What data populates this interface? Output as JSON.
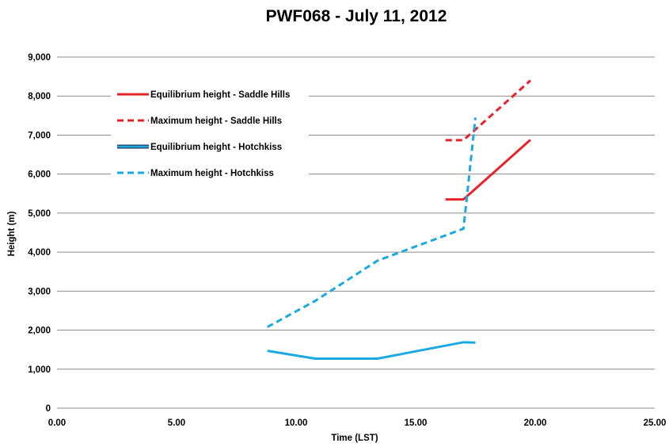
{
  "chart_data": {
    "type": "line",
    "title": "PWF068 - July 11, 2012",
    "xlabel": "Time (LST)",
    "ylabel": "Height (m)",
    "xlim": [
      0,
      25
    ],
    "ylim": [
      0,
      9000
    ],
    "x_ticks": [
      "0.00",
      "5.00",
      "10.00",
      "15.00",
      "20.00",
      "25.00"
    ],
    "y_ticks": [
      "0",
      "1,000",
      "2,000",
      "3,000",
      "4,000",
      "5,000",
      "6,000",
      "7,000",
      "8,000",
      "9,000"
    ],
    "grid": "horizontal",
    "legend_position": "top-left",
    "series": [
      {
        "name": "Equilibrium height - Saddle Hills",
        "color": "#e8222a",
        "style": "solid",
        "x": [
          16.25,
          17.0,
          19.8
        ],
        "y": [
          5350,
          5350,
          6880
        ]
      },
      {
        "name": "Maximum height - Saddle Hills",
        "color": "#e8222a",
        "style": "dashed",
        "x": [
          16.25,
          17.0,
          19.8
        ],
        "y": [
          6870,
          6870,
          8400
        ]
      },
      {
        "name": "Equilibrium height - Hotchkiss",
        "color": "#1ba9e1",
        "style": "solid",
        "x": [
          8.8,
          10.8,
          13.4,
          17.0,
          17.5
        ],
        "y": [
          1470,
          1270,
          1270,
          1690,
          1680
        ]
      },
      {
        "name": "Maximum height - Hotchkiss",
        "color": "#1ba9e1",
        "style": "dashed",
        "x": [
          8.8,
          10.8,
          13.4,
          17.0,
          17.5
        ],
        "y": [
          2080,
          2750,
          3780,
          4600,
          7450
        ]
      }
    ]
  }
}
